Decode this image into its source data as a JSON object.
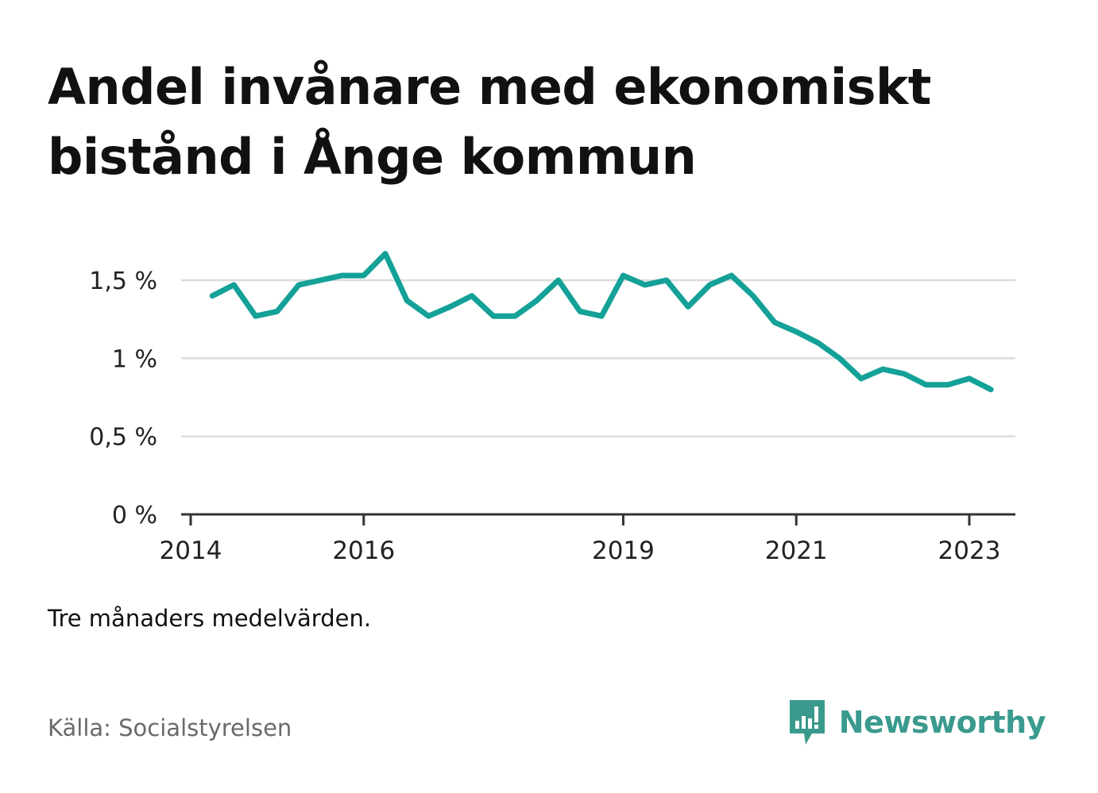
{
  "title": "Andel invånare med ekonomiskt bistånd i Ånge kommun",
  "note": "Tre månaders medelvärden.",
  "source": "Källa: Socialstyrelsen",
  "brand": {
    "name": "Newsworthy",
    "icon": "newsworthy-logo-icon",
    "color": "#3a9a8e"
  },
  "chart_data": {
    "type": "line",
    "ylim": [
      0,
      1.8
    ],
    "yticks": [
      0,
      0.5,
      1,
      1.5
    ],
    "ytick_labels": [
      "0 %",
      "0,5 %",
      "1 %",
      "1,5 %"
    ],
    "xticks": [
      2014,
      2016,
      2019,
      2021,
      2023
    ],
    "xtick_labels": [
      "2014",
      "2016",
      "2019",
      "2021",
      "2023"
    ],
    "grid": true,
    "line_color": "#14a198",
    "series": [
      {
        "x": [
          2014.25,
          2014.5,
          2014.75,
          2015.0,
          2015.25,
          2015.5,
          2015.75,
          2016.0,
          2016.25,
          2016.5,
          2016.75,
          2017.0,
          2017.25,
          2017.5,
          2017.75,
          2018.0,
          2018.25,
          2018.5,
          2018.75,
          2019.0,
          2019.25,
          2019.5,
          2019.75,
          2020.0,
          2020.25,
          2020.5,
          2020.75,
          2021.0,
          2021.25,
          2021.5,
          2021.75,
          2022.0,
          2022.25,
          2022.5,
          2022.75,
          2023.0,
          2023.25
        ],
        "values": [
          1.4,
          1.47,
          1.27,
          1.3,
          1.47,
          1.5,
          1.53,
          1.53,
          1.67,
          1.37,
          1.27,
          1.33,
          1.4,
          1.27,
          1.27,
          1.37,
          1.5,
          1.3,
          1.27,
          1.53,
          1.47,
          1.5,
          1.33,
          1.47,
          1.53,
          1.4,
          1.23,
          1.17,
          1.1,
          1.0,
          0.87,
          0.93,
          0.9,
          0.83,
          0.83,
          0.87,
          0.8
        ]
      }
    ]
  }
}
